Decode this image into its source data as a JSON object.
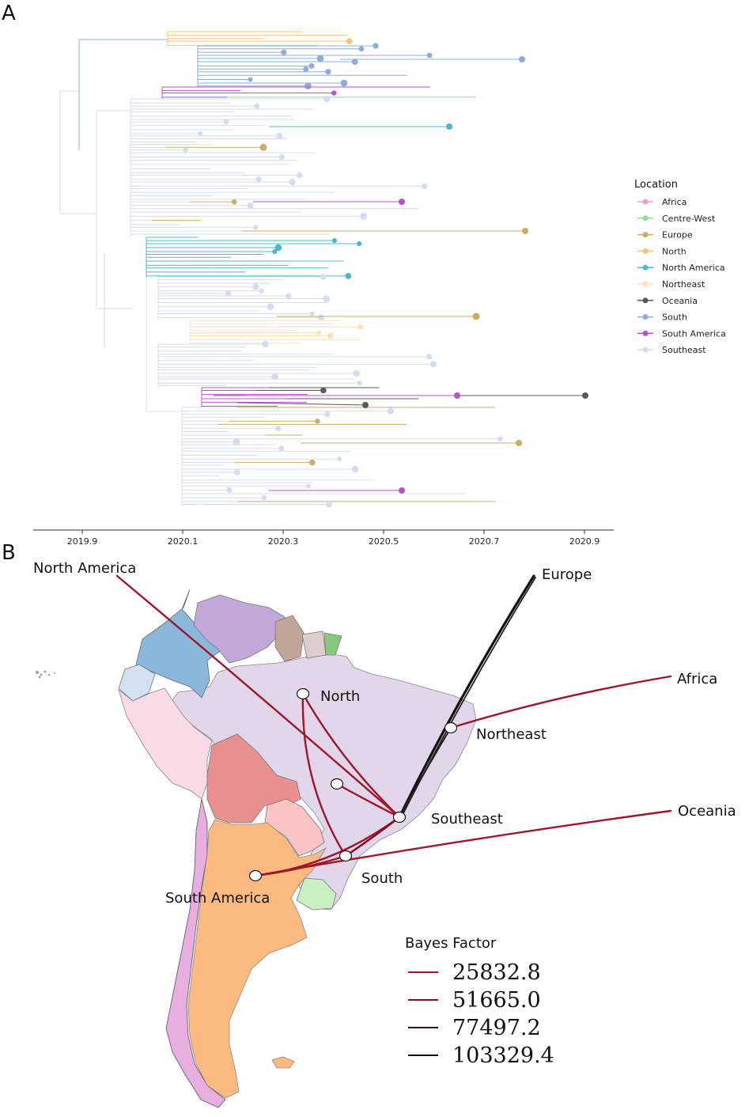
{
  "panel_a": {
    "label": "A",
    "axis_ticks": [
      "2019.9",
      "2020.1",
      "2020.3",
      "2020.5",
      "2020.7",
      "2020.9"
    ],
    "legend": {
      "title": "Location",
      "items": [
        {
          "label": "Africa",
          "color": "#e8a0d6"
        },
        {
          "label": "Centre-West",
          "color": "#8fdc9c"
        },
        {
          "label": "Europe",
          "color": "#c9ad66"
        },
        {
          "label": "North",
          "color": "#f7c27e"
        },
        {
          "label": "North America",
          "color": "#4bb8cf"
        },
        {
          "label": "Northeast",
          "color": "#fde2b8"
        },
        {
          "label": "Oceania",
          "color": "#5a5a5a"
        },
        {
          "label": "South",
          "color": "#8eacd9"
        },
        {
          "label": "South America",
          "color": "#b753c7"
        },
        {
          "label": "Southeast",
          "color": "#d4dcf0"
        }
      ]
    }
  },
  "panel_b": {
    "label": "B",
    "locations": {
      "north_america": "North America",
      "europe": "Europe",
      "africa": "Africa",
      "oceania": "Oceania",
      "north": "North",
      "northeast": "Northeast",
      "southeast": "Southeast",
      "south": "South",
      "south_america": "South America"
    },
    "bayes_factor": {
      "title": "Bayes Factor",
      "items": [
        {
          "label": "25832.8",
          "color": "#a0142c"
        },
        {
          "label": "51665.0",
          "color": "#7c1020"
        },
        {
          "label": "77497.2",
          "color": "#4a0a14"
        },
        {
          "label": "103329.4",
          "color": "#111111"
        }
      ]
    }
  }
}
